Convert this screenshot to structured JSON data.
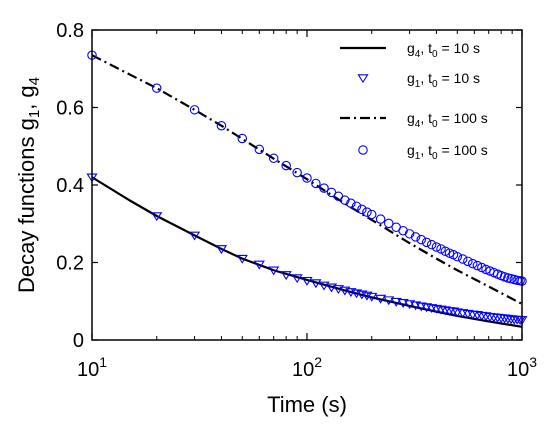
{
  "chart_data": {
    "type": "line",
    "xscale": "log",
    "xlim": [
      10,
      1000
    ],
    "ylim": [
      0,
      0.8
    ],
    "xticks": [
      {
        "value": 10,
        "base": "10",
        "exp": "1"
      },
      {
        "value": 100,
        "base": "10",
        "exp": "2"
      },
      {
        "value": 1000,
        "base": "10",
        "exp": "3"
      }
    ],
    "yticks": [
      {
        "value": 0,
        "label": "0"
      },
      {
        "value": 0.2,
        "label": "0.2"
      },
      {
        "value": 0.4,
        "label": "0.4"
      },
      {
        "value": 0.6,
        "label": "0.6"
      },
      {
        "value": 0.8,
        "label": "0.8"
      }
    ],
    "xlabel": "Time (s)",
    "ylabel": {
      "text": "Decay functions g",
      "sub1": "1",
      "sep": ", g",
      "sub2": "4"
    },
    "grid": false,
    "legend_position": "top-right",
    "series": [
      {
        "label": {
          "name": "g",
          "sub": "4",
          "mid": ", t",
          "sub0": "0",
          "tail": " = 10 s"
        },
        "style": "solid",
        "marker": "none",
        "color": "#000000",
        "x": [
          10,
          15,
          20,
          30,
          40,
          50,
          70,
          100,
          150,
          200,
          300,
          400,
          500,
          700,
          1000
        ],
        "y": [
          0.42,
          0.36,
          0.32,
          0.27,
          0.235,
          0.21,
          0.18,
          0.155,
          0.128,
          0.11,
          0.088,
          0.073,
          0.062,
          0.048,
          0.034
        ]
      },
      {
        "label": {
          "name": "g",
          "sub": "1",
          "mid": ", t",
          "sub0": "0",
          "tail": " = 10 s"
        },
        "style": "none",
        "marker": "triangle-down",
        "color": "#0000ff",
        "x": [
          10,
          20,
          30,
          40,
          50,
          60,
          70,
          80,
          90,
          100,
          110,
          120,
          130,
          140,
          150,
          160,
          170,
          180,
          190,
          200,
          220,
          240,
          260,
          280,
          300,
          320,
          340,
          360,
          380,
          400,
          420,
          440,
          460,
          480,
          500,
          530,
          560,
          590,
          620,
          650,
          680,
          710,
          740,
          770,
          800,
          830,
          860,
          890,
          920,
          950,
          980,
          1000
        ],
        "y": [
          0.42,
          0.32,
          0.27,
          0.235,
          0.21,
          0.195,
          0.18,
          0.168,
          0.16,
          0.153,
          0.147,
          0.141,
          0.136,
          0.132,
          0.128,
          0.124,
          0.121,
          0.118,
          0.115,
          0.112,
          0.107,
          0.103,
          0.099,
          0.096,
          0.093,
          0.09,
          0.087,
          0.085,
          0.083,
          0.081,
          0.079,
          0.077,
          0.075,
          0.074,
          0.072,
          0.07,
          0.068,
          0.066,
          0.065,
          0.063,
          0.062,
          0.06,
          0.059,
          0.058,
          0.057,
          0.056,
          0.055,
          0.054,
          0.053,
          0.053,
          0.052,
          0.052
        ]
      },
      {
        "label": {
          "name": "g",
          "sub": "4",
          "mid": ", t",
          "sub0": "0",
          "tail": " = 100 s"
        },
        "style": "dashdot",
        "marker": "none",
        "color": "#000000",
        "x": [
          10,
          15,
          20,
          30,
          40,
          50,
          70,
          100,
          150,
          200,
          300,
          400,
          500,
          700,
          1000
        ],
        "y": [
          0.735,
          0.685,
          0.65,
          0.594,
          0.553,
          0.519,
          0.468,
          0.415,
          0.352,
          0.31,
          0.25,
          0.21,
          0.18,
          0.138,
          0.093
        ]
      },
      {
        "label": {
          "name": "g",
          "sub": "1",
          "mid": ", t",
          "sub0": "0",
          "tail": " = 100 s"
        },
        "style": "none",
        "marker": "circle",
        "color": "#0000ff",
        "x": [
          10,
          20,
          30,
          40,
          50,
          60,
          70,
          80,
          90,
          100,
          110,
          120,
          130,
          140,
          150,
          160,
          170,
          180,
          190,
          200,
          220,
          240,
          260,
          280,
          300,
          320,
          340,
          360,
          380,
          400,
          420,
          440,
          460,
          480,
          500,
          530,
          560,
          590,
          620,
          650,
          680,
          710,
          740,
          770,
          800,
          830,
          860,
          890,
          920,
          950,
          980,
          1000
        ],
        "y": [
          0.735,
          0.65,
          0.594,
          0.553,
          0.52,
          0.492,
          0.469,
          0.45,
          0.432,
          0.418,
          0.404,
          0.392,
          0.381,
          0.371,
          0.361,
          0.353,
          0.345,
          0.337,
          0.33,
          0.324,
          0.312,
          0.301,
          0.291,
          0.282,
          0.274,
          0.266,
          0.259,
          0.252,
          0.246,
          0.24,
          0.235,
          0.229,
          0.224,
          0.22,
          0.215,
          0.209,
          0.203,
          0.197,
          0.192,
          0.187,
          0.182,
          0.178,
          0.174,
          0.17,
          0.166,
          0.163,
          0.16,
          0.158,
          0.156,
          0.154,
          0.153,
          0.152
        ]
      }
    ]
  }
}
